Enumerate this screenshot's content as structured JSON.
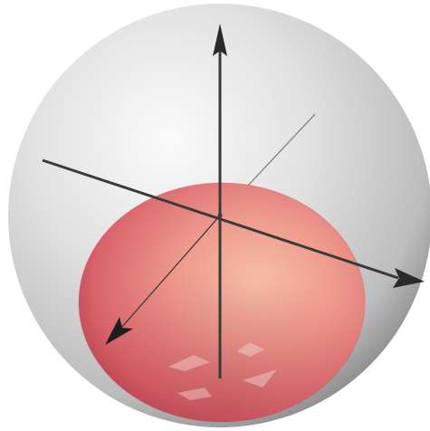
{
  "scene": {
    "background": "#ffffff",
    "outer_sphere": {
      "shape": "sphere",
      "opacity": "translucent",
      "color_light": "#f6f6f6",
      "color_dark": "#8e8e8e"
    },
    "inner_ellipsoid": {
      "shape": "ellipsoid",
      "color_light": "#f7c0a8",
      "color_mid": "#e5737a",
      "color_dark": "#b9404b"
    },
    "axes": {
      "count": 3,
      "color": "#3a3a3a",
      "arrowheads": [
        "vertical-up-arrow",
        "right-arrow",
        "lower-left-arrow"
      ]
    }
  }
}
